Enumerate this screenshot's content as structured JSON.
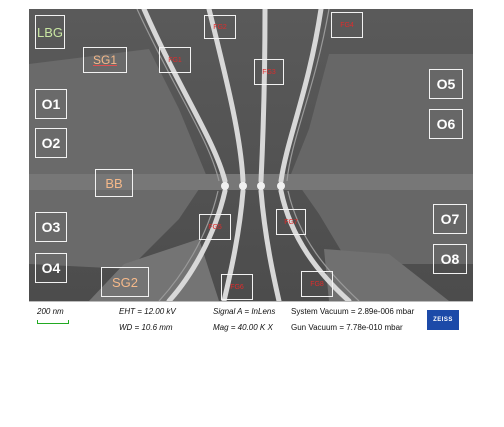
{
  "labels": {
    "lbg": "LBG",
    "sg1": "SG1",
    "sg2": "SG2",
    "bb": "BB",
    "o1": "O1",
    "o2": "O2",
    "o3": "O3",
    "o4": "O4",
    "o5": "O5",
    "o6": "O6",
    "o7": "O7",
    "o8": "O8",
    "fg1": "FG1",
    "fg2": "FG2",
    "fg3": "FG3",
    "fg4": "FG4",
    "fg5": "FG5",
    "fg6": "FG6",
    "fg7": "FG7",
    "fg8": "FG8"
  },
  "databar": {
    "scale": "200 nm",
    "eht": "EHT = 12.00 kV",
    "wd": "WD = 10.6 mm",
    "signal": "Signal A = InLens",
    "mag": "Mag =  40.00 K X",
    "system_vacuum": "System Vacuum = 2.89e-006 mbar",
    "gun_vacuum": "Gun Vacuum = 7.78e-010 mbar",
    "logo": "ZEISS"
  }
}
